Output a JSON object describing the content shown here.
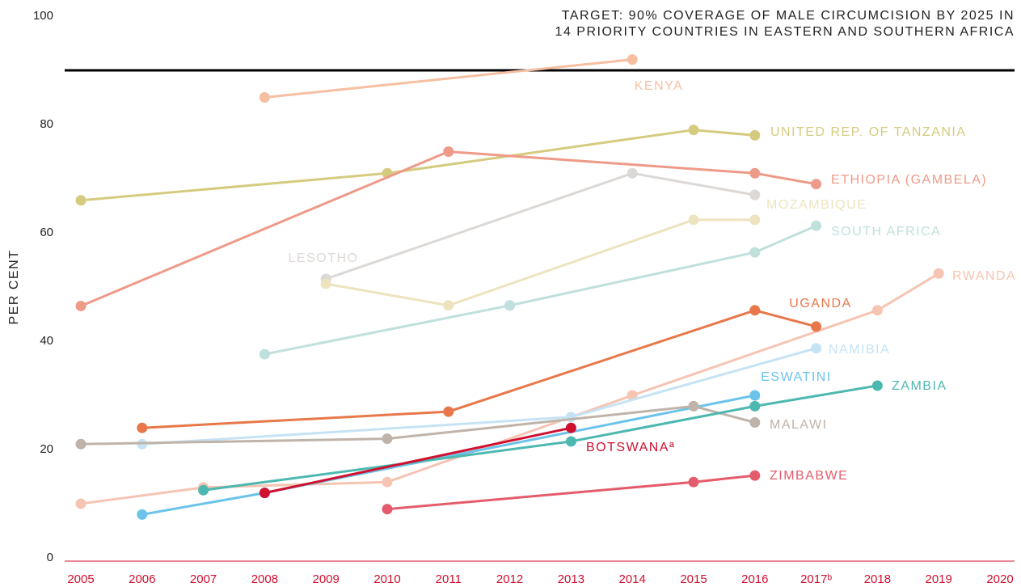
{
  "chart_data": {
    "type": "line",
    "title": [
      "TARGET: 90% COVERAGE OF MALE CIRCUMCISION BY 2025 IN",
      "14 PRIORITY COUNTRIES IN EASTERN AND SOUTHERN AFRICA"
    ],
    "target": 90,
    "ylabel": "PER CENT",
    "xlim": [
      2005,
      2020
    ],
    "xticks": [
      2005,
      2006,
      2007,
      2008,
      2009,
      2010,
      2011,
      2012,
      2013,
      2014,
      2015,
      2016,
      {
        "value": 2017,
        "label": "2017ᵇ"
      },
      2018,
      2019,
      2020
    ],
    "ylim": [
      0,
      100
    ],
    "yticks": [
      0,
      20,
      40,
      60,
      80,
      100
    ],
    "grid": false,
    "series": [
      {
        "name": "KENYA",
        "color": "#f6bfa2",
        "x": [
          2008,
          2014
        ],
        "values": [
          85,
          92
        ]
      },
      {
        "name": "UNITED REP. OF TANZANIA",
        "color": "#d5cb7f",
        "x": [
          2005,
          2010,
          2015,
          2016
        ],
        "values": [
          66,
          71,
          79,
          78
        ]
      },
      {
        "name": "ETHIOPIA (GAMBELA)",
        "color": "#ee9a88",
        "x": [
          2005,
          2011,
          2016,
          2017
        ],
        "values": [
          46.5,
          75,
          71,
          69
        ]
      },
      {
        "name": "LESOTHO",
        "color": "#dcd8d5",
        "x": [
          2009,
          2014,
          2016
        ],
        "values": [
          51.5,
          71,
          67
        ]
      },
      {
        "name": "MOZAMBIQUE",
        "color": "#ede4bf",
        "x": [
          2009,
          2011,
          2015,
          2016
        ],
        "values": [
          50.6,
          46.6,
          62.4,
          62.4
        ]
      },
      {
        "name": "SOUTH AFRICA",
        "color": "#bfe0dc",
        "x": [
          2008,
          2012,
          2016,
          2017
        ],
        "values": [
          37.6,
          46.6,
          56.4,
          61.3
        ]
      },
      {
        "name": "RWANDA",
        "color": "#f6c4b2",
        "x": [
          2005,
          2007,
          2010,
          2014,
          2018,
          2019
        ],
        "values": [
          10,
          13,
          14,
          30,
          45.7,
          52.5
        ]
      },
      {
        "name": "UGANDA",
        "color": "#e8784a",
        "x": [
          2006,
          2011,
          2016,
          2017
        ],
        "values": [
          24,
          27,
          45.7,
          42.7
        ]
      },
      {
        "name": "NAMIBIA",
        "color": "#c6e3f5",
        "x": [
          2006,
          2013,
          2017
        ],
        "values": [
          21,
          26,
          38.7
        ]
      },
      {
        "name": "ESWATINI",
        "color": "#6cc3ea",
        "x": [
          2006,
          2008,
          2016
        ],
        "values": [
          8,
          12,
          30
        ]
      },
      {
        "name": "MALAWI",
        "color": "#bfb3aa",
        "x": [
          2005,
          2010,
          2015,
          2016
        ],
        "values": [
          21,
          22,
          28,
          25
        ]
      },
      {
        "name": "ZAMBIA",
        "color": "#4db8b0",
        "x": [
          2007,
          2013,
          2016,
          2018
        ],
        "values": [
          12.5,
          21.5,
          28,
          31.8
        ]
      },
      {
        "name": "BOTSWANAª",
        "color": "#d0102f",
        "x": [
          2008,
          2013
        ],
        "values": [
          12,
          24
        ]
      },
      {
        "name": "ZIMBABWE",
        "color": "#e45c6b",
        "x": [
          2010,
          2015,
          2016
        ],
        "values": [
          9,
          14,
          15.2
        ]
      }
    ]
  }
}
